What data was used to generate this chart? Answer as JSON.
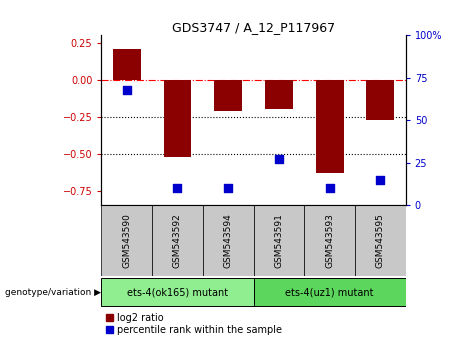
{
  "title": "GDS3747 / A_12_P117967",
  "samples": [
    "GSM543590",
    "GSM543592",
    "GSM543594",
    "GSM543591",
    "GSM543593",
    "GSM543595"
  ],
  "log2_ratios": [
    0.21,
    -0.52,
    -0.21,
    -0.2,
    -0.63,
    -0.27
  ],
  "percentile_ranks": [
    68,
    10,
    10,
    27,
    10,
    15
  ],
  "groups": [
    {
      "label": "ets-4(ok165) mutant",
      "indices": [
        0,
        1,
        2
      ],
      "color": "#90ee90"
    },
    {
      "label": "ets-4(uz1) mutant",
      "indices": [
        3,
        4,
        5
      ],
      "color": "#5cd65c"
    }
  ],
  "ylim_left": [
    -0.85,
    0.3
  ],
  "ylim_right": [
    0,
    100
  ],
  "left_yticks": [
    -0.75,
    -0.5,
    -0.25,
    0,
    0.25
  ],
  "right_yticks": [
    0,
    25,
    50,
    75,
    100
  ],
  "hlines_dotted": [
    -0.25,
    -0.5
  ],
  "hline_dashed": 0,
  "bar_color": "#8b0000",
  "dot_color": "#0000cd",
  "bar_width": 0.55,
  "dot_size": 28,
  "left_tick_color": "#cc0000",
  "right_tick_color": "#0000cc",
  "legend_red_label": "log2 ratio",
  "legend_blue_label": "percentile rank within the sample",
  "genotype_label": "genotype/variation",
  "sample_box_color": "#c8c8c8",
  "group1_color": "#90ee90",
  "group2_color": "#5cd65c"
}
